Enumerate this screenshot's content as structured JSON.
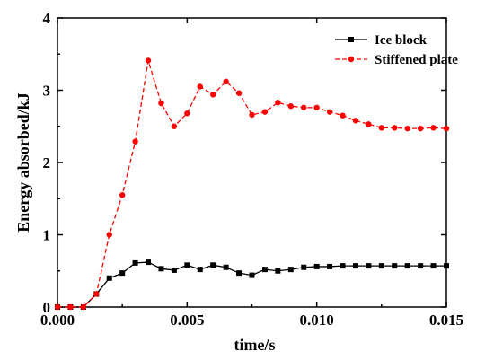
{
  "colors": {
    "ice_block": "#000000",
    "stiffened_plate": "#ff0000",
    "axis": "#000000",
    "background": "#ffffff"
  },
  "chart_data": {
    "type": "line",
    "title": "",
    "xlabel": "time/s",
    "ylabel": "Energy absorbed/kJ",
    "xlim": [
      0.0,
      0.015
    ],
    "ylim": [
      0,
      4
    ],
    "x_ticks": [
      0.0,
      0.005,
      0.01,
      0.015
    ],
    "x_tick_labels": [
      "0.000",
      "0.005",
      "0.010",
      "0.015"
    ],
    "y_ticks": [
      0,
      1,
      2,
      3,
      4
    ],
    "y_tick_labels": [
      "0",
      "1",
      "2",
      "3",
      "4"
    ],
    "grid": false,
    "legend_position": "top-right",
    "series": [
      {
        "name": "Ice block",
        "color": "#000000",
        "line_style": "solid",
        "marker": "square",
        "x": [
          0.0,
          0.0005,
          0.001,
          0.0015,
          0.002,
          0.0025,
          0.003,
          0.0035,
          0.004,
          0.0045,
          0.005,
          0.0055,
          0.006,
          0.0065,
          0.007,
          0.0075,
          0.008,
          0.0085,
          0.009,
          0.0095,
          0.01,
          0.0105,
          0.011,
          0.0115,
          0.012,
          0.0125,
          0.013,
          0.0135,
          0.014,
          0.0145,
          0.015
        ],
        "y": [
          0.0,
          0.0,
          0.0,
          0.18,
          0.4,
          0.47,
          0.61,
          0.62,
          0.53,
          0.51,
          0.58,
          0.52,
          0.58,
          0.55,
          0.47,
          0.44,
          0.52,
          0.5,
          0.52,
          0.55,
          0.56,
          0.56,
          0.57,
          0.57,
          0.57,
          0.57,
          0.57,
          0.57,
          0.57,
          0.57,
          0.57
        ]
      },
      {
        "name": "Stiffened plate",
        "color": "#ff0000",
        "line_style": "dashed",
        "marker": "circle",
        "x": [
          0.0,
          0.0005,
          0.001,
          0.0015,
          0.002,
          0.0025,
          0.003,
          0.0035,
          0.004,
          0.0045,
          0.005,
          0.0055,
          0.006,
          0.0065,
          0.007,
          0.0075,
          0.008,
          0.0085,
          0.009,
          0.0095,
          0.01,
          0.0105,
          0.011,
          0.0115,
          0.012,
          0.0125,
          0.013,
          0.0135,
          0.014,
          0.0145,
          0.015
        ],
        "y": [
          0.0,
          0.0,
          0.0,
          0.18,
          1.0,
          1.55,
          2.29,
          3.41,
          2.82,
          2.5,
          2.68,
          3.05,
          2.94,
          3.12,
          2.96,
          2.66,
          2.7,
          2.83,
          2.78,
          2.76,
          2.76,
          2.7,
          2.65,
          2.58,
          2.53,
          2.48,
          2.48,
          2.47,
          2.47,
          2.48,
          2.47
        ]
      }
    ]
  }
}
